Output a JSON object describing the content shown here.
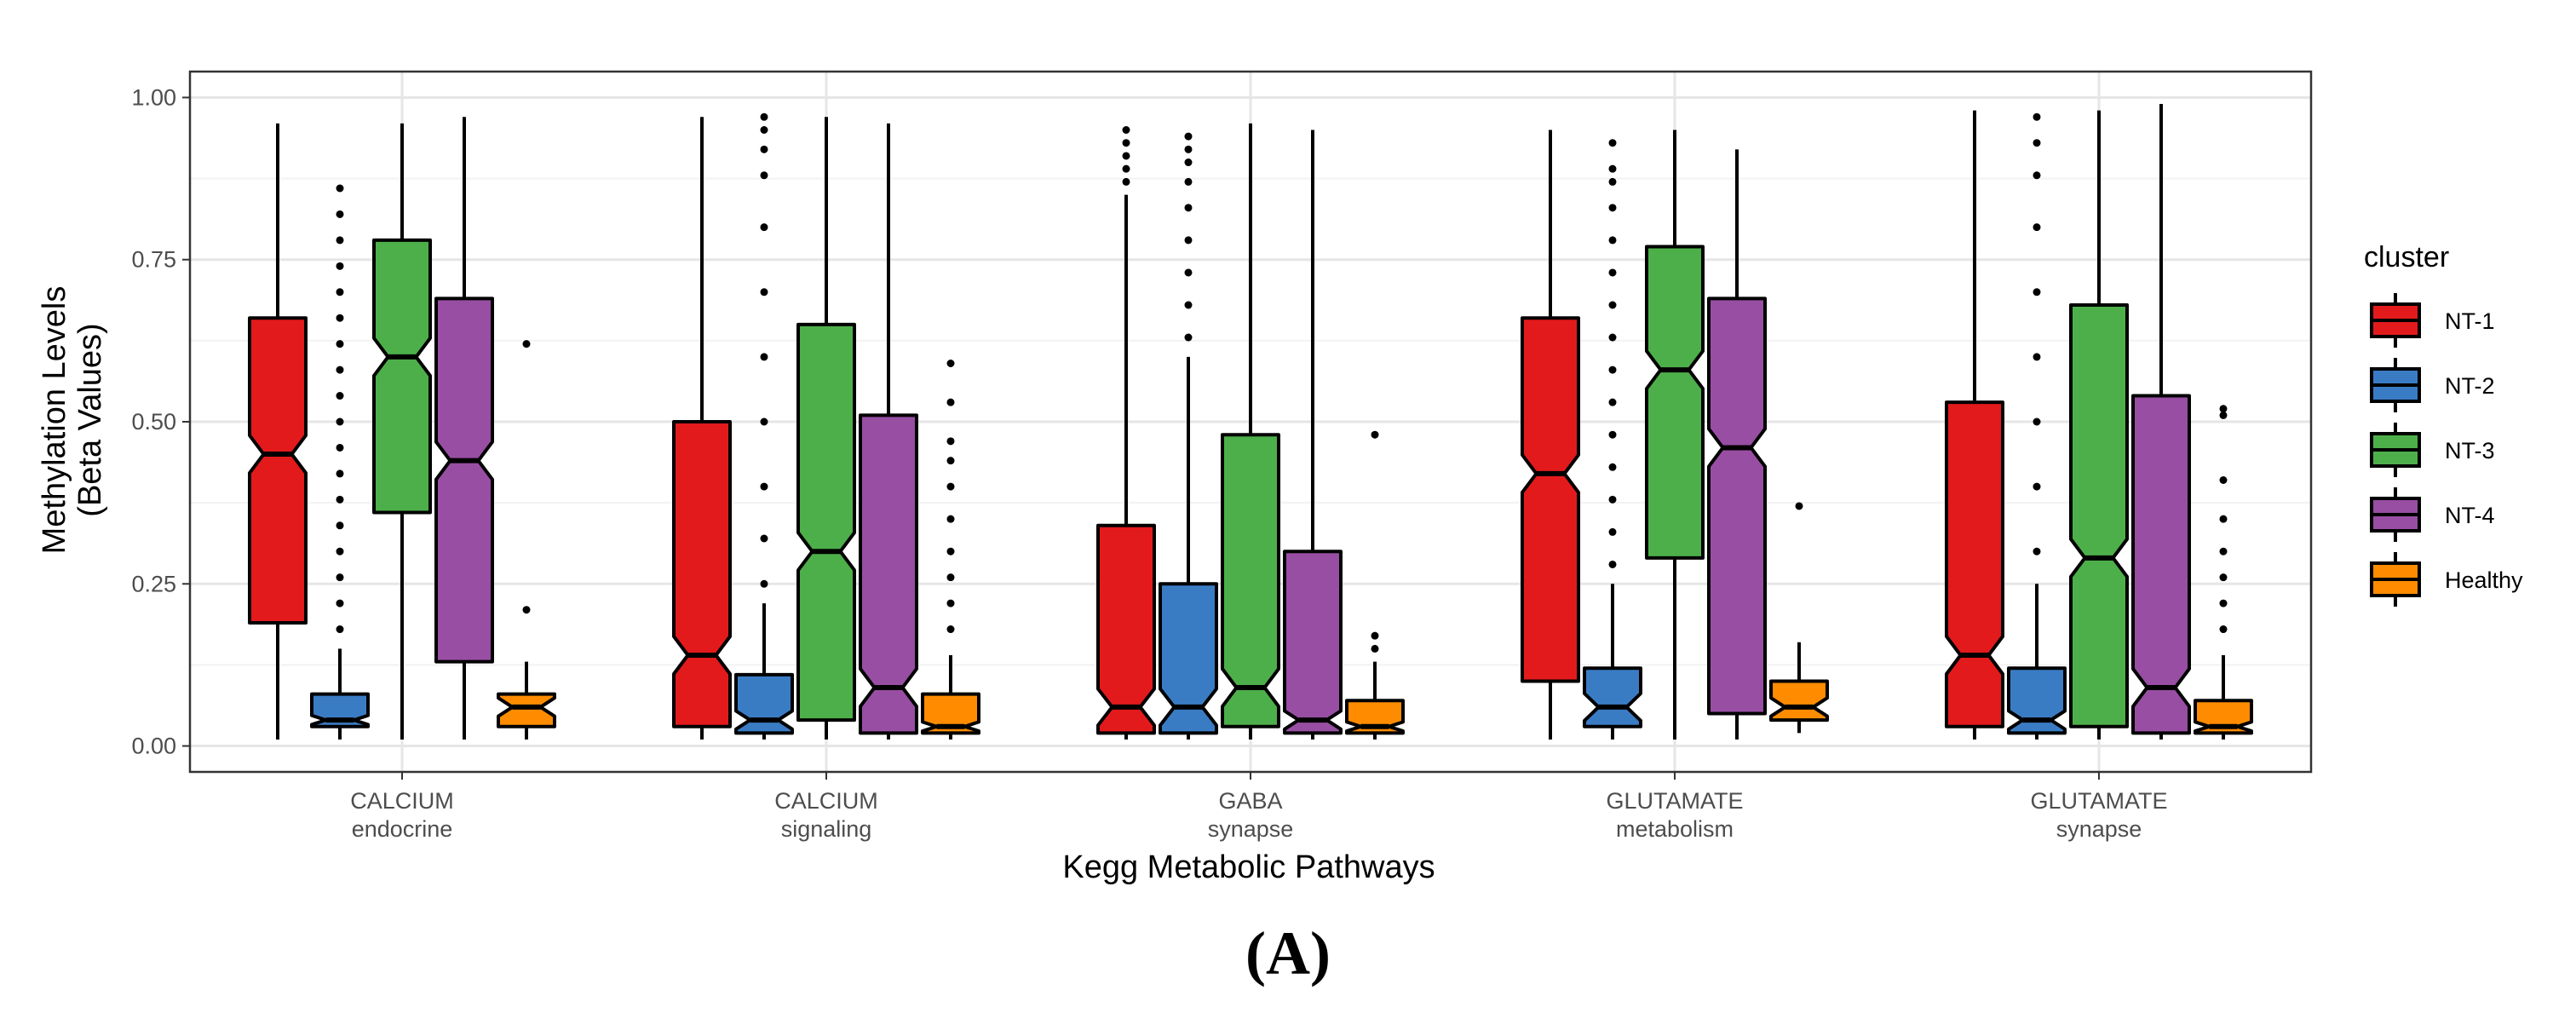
{
  "chart_data": {
    "type": "boxplot",
    "title": "",
    "xlabel": "Kegg Metabolic Pathways",
    "ylabel_line1": "Methylation Levels",
    "ylabel_line2": "(Beta Values)",
    "ylim": [
      -0.04,
      1.04
    ],
    "yticks": [
      0,
      0.25,
      0.5,
      0.75,
      1
    ],
    "ytick_labels": [
      "0.00",
      "0.25",
      "0.50",
      "0.75",
      "1.00"
    ],
    "grid": true,
    "notched": true,
    "legend_position": "right",
    "legend": {
      "title": "cluster",
      "entries": [
        {
          "name": "NT-1",
          "color": "#e31a1c"
        },
        {
          "name": "NT-2",
          "color": "#3a7cc4"
        },
        {
          "name": "NT-3",
          "color": "#4daf4a"
        },
        {
          "name": "NT-4",
          "color": "#984ea3"
        },
        {
          "name": "Healthy",
          "color": "#ff8c00"
        }
      ]
    },
    "categories": [
      {
        "line1": "CALCIUM",
        "line2": "endocrine"
      },
      {
        "line1": "CALCIUM",
        "line2": "signaling"
      },
      {
        "line1": "GABA",
        "line2": "synapse"
      },
      {
        "line1": "GLUTAMATE",
        "line2": "metabolism"
      },
      {
        "line1": "GLUTAMATE",
        "line2": "synapse"
      }
    ],
    "series": [
      {
        "name": "NT-1",
        "boxes": [
          {
            "min": 0.01,
            "q1": 0.19,
            "median": 0.45,
            "q3": 0.66,
            "max": 0.96,
            "outliers": []
          },
          {
            "min": 0.01,
            "q1": 0.03,
            "median": 0.14,
            "q3": 0.5,
            "max": 0.97,
            "outliers": []
          },
          {
            "min": 0.01,
            "q1": 0.02,
            "median": 0.06,
            "q3": 0.34,
            "max": 0.85,
            "outliers": [
              0.87,
              0.89,
              0.91,
              0.93,
              0.95
            ]
          },
          {
            "min": 0.01,
            "q1": 0.1,
            "median": 0.42,
            "q3": 0.66,
            "max": 0.95,
            "outliers": []
          },
          {
            "min": 0.01,
            "q1": 0.03,
            "median": 0.14,
            "q3": 0.53,
            "max": 0.98,
            "outliers": []
          }
        ]
      },
      {
        "name": "NT-2",
        "boxes": [
          {
            "min": 0.01,
            "q1": 0.03,
            "median": 0.04,
            "q3": 0.08,
            "max": 0.15,
            "outliers": [
              0.18,
              0.22,
              0.26,
              0.3,
              0.34,
              0.38,
              0.42,
              0.46,
              0.5,
              0.54,
              0.58,
              0.62,
              0.66,
              0.7,
              0.74,
              0.78,
              0.82,
              0.86
            ]
          },
          {
            "min": 0.01,
            "q1": 0.02,
            "median": 0.04,
            "q3": 0.11,
            "max": 0.22,
            "outliers": [
              0.25,
              0.32,
              0.4,
              0.5,
              0.6,
              0.7,
              0.8,
              0.88,
              0.92,
              0.95,
              0.97
            ]
          },
          {
            "min": 0.01,
            "q1": 0.02,
            "median": 0.06,
            "q3": 0.25,
            "max": 0.6,
            "outliers": [
              0.63,
              0.68,
              0.73,
              0.78,
              0.83,
              0.87,
              0.9,
              0.92,
              0.94
            ]
          },
          {
            "min": 0.01,
            "q1": 0.03,
            "median": 0.06,
            "q3": 0.12,
            "max": 0.25,
            "outliers": [
              0.28,
              0.33,
              0.38,
              0.43,
              0.48,
              0.53,
              0.58,
              0.63,
              0.68,
              0.73,
              0.78,
              0.83,
              0.87,
              0.89,
              0.93
            ]
          },
          {
            "min": 0.01,
            "q1": 0.02,
            "median": 0.04,
            "q3": 0.12,
            "max": 0.25,
            "outliers": [
              0.3,
              0.4,
              0.5,
              0.6,
              0.7,
              0.8,
              0.88,
              0.93,
              0.97
            ]
          }
        ]
      },
      {
        "name": "NT-3",
        "boxes": [
          {
            "min": 0.01,
            "q1": 0.36,
            "median": 0.6,
            "q3": 0.78,
            "max": 0.96,
            "outliers": []
          },
          {
            "min": 0.01,
            "q1": 0.04,
            "median": 0.3,
            "q3": 0.65,
            "max": 0.97,
            "outliers": []
          },
          {
            "min": 0.01,
            "q1": 0.03,
            "median": 0.09,
            "q3": 0.48,
            "max": 0.96,
            "outliers": []
          },
          {
            "min": 0.01,
            "q1": 0.29,
            "median": 0.58,
            "q3": 0.77,
            "max": 0.95,
            "outliers": []
          },
          {
            "min": 0.01,
            "q1": 0.03,
            "median": 0.29,
            "q3": 0.68,
            "max": 0.98,
            "outliers": []
          }
        ]
      },
      {
        "name": "NT-4",
        "boxes": [
          {
            "min": 0.01,
            "q1": 0.13,
            "median": 0.44,
            "q3": 0.69,
            "max": 0.97,
            "outliers": []
          },
          {
            "min": 0.01,
            "q1": 0.02,
            "median": 0.09,
            "q3": 0.51,
            "max": 0.96,
            "outliers": []
          },
          {
            "min": 0.01,
            "q1": 0.02,
            "median": 0.04,
            "q3": 0.3,
            "max": 0.95,
            "outliers": []
          },
          {
            "min": 0.01,
            "q1": 0.05,
            "median": 0.46,
            "q3": 0.69,
            "max": 0.92,
            "outliers": []
          },
          {
            "min": 0.01,
            "q1": 0.02,
            "median": 0.09,
            "q3": 0.54,
            "max": 0.99,
            "outliers": []
          }
        ]
      },
      {
        "name": "Healthy",
        "boxes": [
          {
            "min": 0.01,
            "q1": 0.03,
            "median": 0.06,
            "q3": 0.08,
            "max": 0.13,
            "outliers": [
              0.21,
              0.62
            ]
          },
          {
            "min": 0.01,
            "q1": 0.02,
            "median": 0.03,
            "q3": 0.08,
            "max": 0.14,
            "outliers": [
              0.18,
              0.22,
              0.26,
              0.3,
              0.35,
              0.4,
              0.44,
              0.47,
              0.53,
              0.59
            ]
          },
          {
            "min": 0.01,
            "q1": 0.02,
            "median": 0.03,
            "q3": 0.07,
            "max": 0.13,
            "outliers": [
              0.15,
              0.17,
              0.48
            ]
          },
          {
            "min": 0.02,
            "q1": 0.04,
            "median": 0.06,
            "q3": 0.1,
            "max": 0.16,
            "outliers": [
              0.37
            ]
          },
          {
            "min": 0.01,
            "q1": 0.02,
            "median": 0.03,
            "q3": 0.07,
            "max": 0.14,
            "outliers": [
              0.18,
              0.22,
              0.26,
              0.3,
              0.35,
              0.41,
              0.51,
              0.52
            ]
          }
        ]
      }
    ]
  },
  "panel_label": "(A)"
}
